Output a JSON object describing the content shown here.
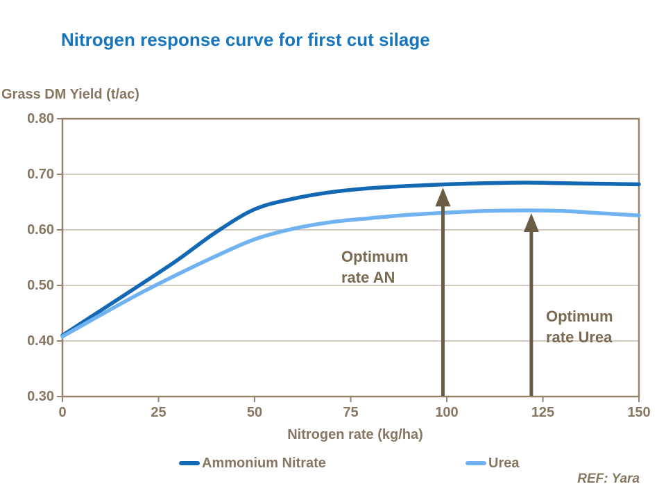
{
  "title": {
    "text": "Nitrogen response curve for first cut silage",
    "color": "#1775BC"
  },
  "source_note": "REF: Yara",
  "colors": {
    "background": "#FFFFFF",
    "title_blue": "#1775BC",
    "text_brown": "#877661",
    "annotation_brown": "#7A6A52",
    "arrow_brown": "#6B5D45",
    "axis_line": "#95836D",
    "gridline": "#C6BBAB",
    "series_ammonium_nitrate": "#1368B4",
    "series_urea": "#71B3F0"
  },
  "chart_data": {
    "type": "line",
    "title": "Nitrogen response curve for first cut silage",
    "xlabel": "Nitrogen rate (kg/ha)",
    "ylabel": "Grass DM Yield (t/ac)",
    "xlim": [
      0,
      150
    ],
    "ylim": [
      0.3,
      0.8
    ],
    "xticks": [
      0,
      25,
      50,
      75,
      100,
      125,
      150
    ],
    "xtick_labels": [
      "0",
      "25",
      "50",
      "75",
      "100",
      "125",
      "150"
    ],
    "yticks": [
      0.3,
      0.4,
      0.5,
      0.6,
      0.7,
      0.8
    ],
    "ytick_labels": [
      "0.30",
      "0.40",
      "0.50",
      "0.60",
      "0.70",
      "0.80"
    ],
    "grid": "horizontal-only",
    "legend_position": "bottom",
    "series": [
      {
        "name": "Ammonium Nitrate",
        "color": "#1368B4",
        "x": [
          0,
          10,
          20,
          30,
          40,
          50,
          60,
          70,
          80,
          90,
          100,
          110,
          120,
          130,
          140,
          150
        ],
        "y": [
          0.41,
          0.455,
          0.5,
          0.546,
          0.596,
          0.637,
          0.656,
          0.668,
          0.675,
          0.679,
          0.682,
          0.684,
          0.685,
          0.684,
          0.683,
          0.682
        ]
      },
      {
        "name": "Urea",
        "color": "#71B3F0",
        "x": [
          0,
          10,
          20,
          30,
          40,
          50,
          60,
          70,
          80,
          90,
          100,
          110,
          120,
          130,
          140,
          150
        ],
        "y": [
          0.408,
          0.447,
          0.485,
          0.52,
          0.553,
          0.583,
          0.602,
          0.614,
          0.621,
          0.627,
          0.631,
          0.634,
          0.635,
          0.634,
          0.63,
          0.626
        ]
      }
    ],
    "annotations": [
      {
        "id": "optimum-an",
        "lines": [
          "Optimum",
          "rate AN"
        ],
        "arrow_x": 99,
        "arrow_tip_value": 0.676
      },
      {
        "id": "optimum-urea",
        "lines": [
          "Optimum",
          "rate Urea"
        ],
        "arrow_x": 122,
        "arrow_tip_value": 0.63
      }
    ]
  },
  "legend": {
    "items": [
      {
        "label": "Ammonium Nitrate",
        "color": "#1368B4"
      },
      {
        "label": "Urea",
        "color": "#71B3F0"
      }
    ]
  }
}
